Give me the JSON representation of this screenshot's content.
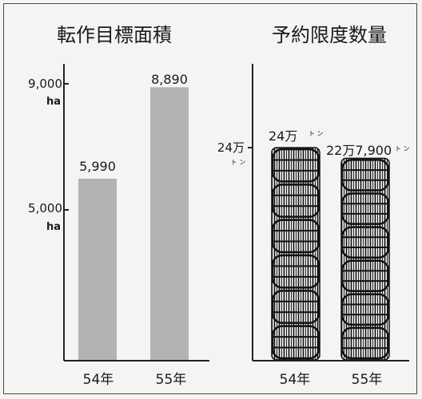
{
  "chart_data": [
    {
      "type": "bar",
      "title": "転作目標面積",
      "categories": [
        "54年",
        "55年"
      ],
      "values": [
        5990,
        8890
      ],
      "value_labels": [
        "5,990",
        "8,890"
      ],
      "y_ticks": [
        {
          "value": 9000,
          "label": "9,000",
          "unit": "ha"
        },
        {
          "value": 5000,
          "label": "5,000",
          "unit": "ha"
        }
      ],
      "bar_color": "#b3b3b3"
    },
    {
      "type": "bar",
      "title": "予約限度数量",
      "categories": [
        "54年",
        "55年"
      ],
      "values": [
        240000,
        227900
      ],
      "value_labels": [
        "24万",
        "22万7,900"
      ],
      "value_unit": "ト ン",
      "y_ticks": [
        {
          "value": 240000,
          "label": "24万",
          "unit": "ト ン"
        }
      ],
      "bar_style": "stacked rice bales"
    }
  ]
}
